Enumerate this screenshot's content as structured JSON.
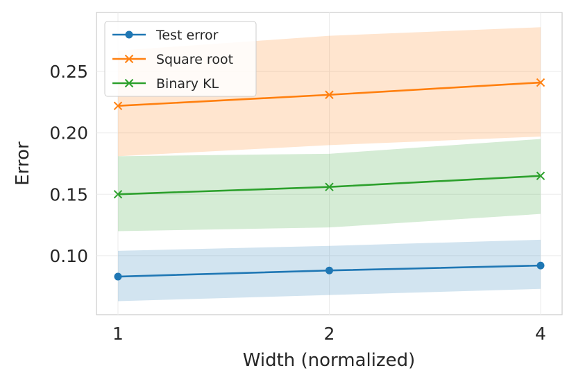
{
  "chart_data": {
    "type": "line",
    "xlabel": "Width (normalized)",
    "ylabel": "Error",
    "x": [
      1,
      2,
      4
    ],
    "x_ticks": [
      "1",
      "2",
      "4"
    ],
    "x_scale": "log2",
    "ylim": [
      0.052,
      0.298
    ],
    "y_ticks": [
      "0.10",
      "0.15",
      "0.20",
      "0.25"
    ],
    "y_tick_values": [
      0.1,
      0.15,
      0.2,
      0.25
    ],
    "grid": true,
    "legend_position": "top-left",
    "series": [
      {
        "name": "Test error",
        "color": "#1f77b4",
        "marker": "circle",
        "values": [
          0.083,
          0.088,
          0.092
        ],
        "band_lower": [
          0.063,
          0.068,
          0.073
        ],
        "band_upper": [
          0.104,
          0.108,
          0.113
        ]
      },
      {
        "name": "Square root",
        "color": "#ff7f0e",
        "marker": "x",
        "values": [
          0.222,
          0.231,
          0.241
        ],
        "band_lower": [
          0.181,
          0.19,
          0.197
        ],
        "band_upper": [
          0.267,
          0.279,
          0.286
        ]
      },
      {
        "name": "Binary KL",
        "color": "#2ca02c",
        "marker": "x",
        "values": [
          0.15,
          0.156,
          0.165
        ],
        "band_lower": [
          0.12,
          0.123,
          0.134
        ],
        "band_upper": [
          0.181,
          0.183,
          0.195
        ]
      }
    ]
  }
}
